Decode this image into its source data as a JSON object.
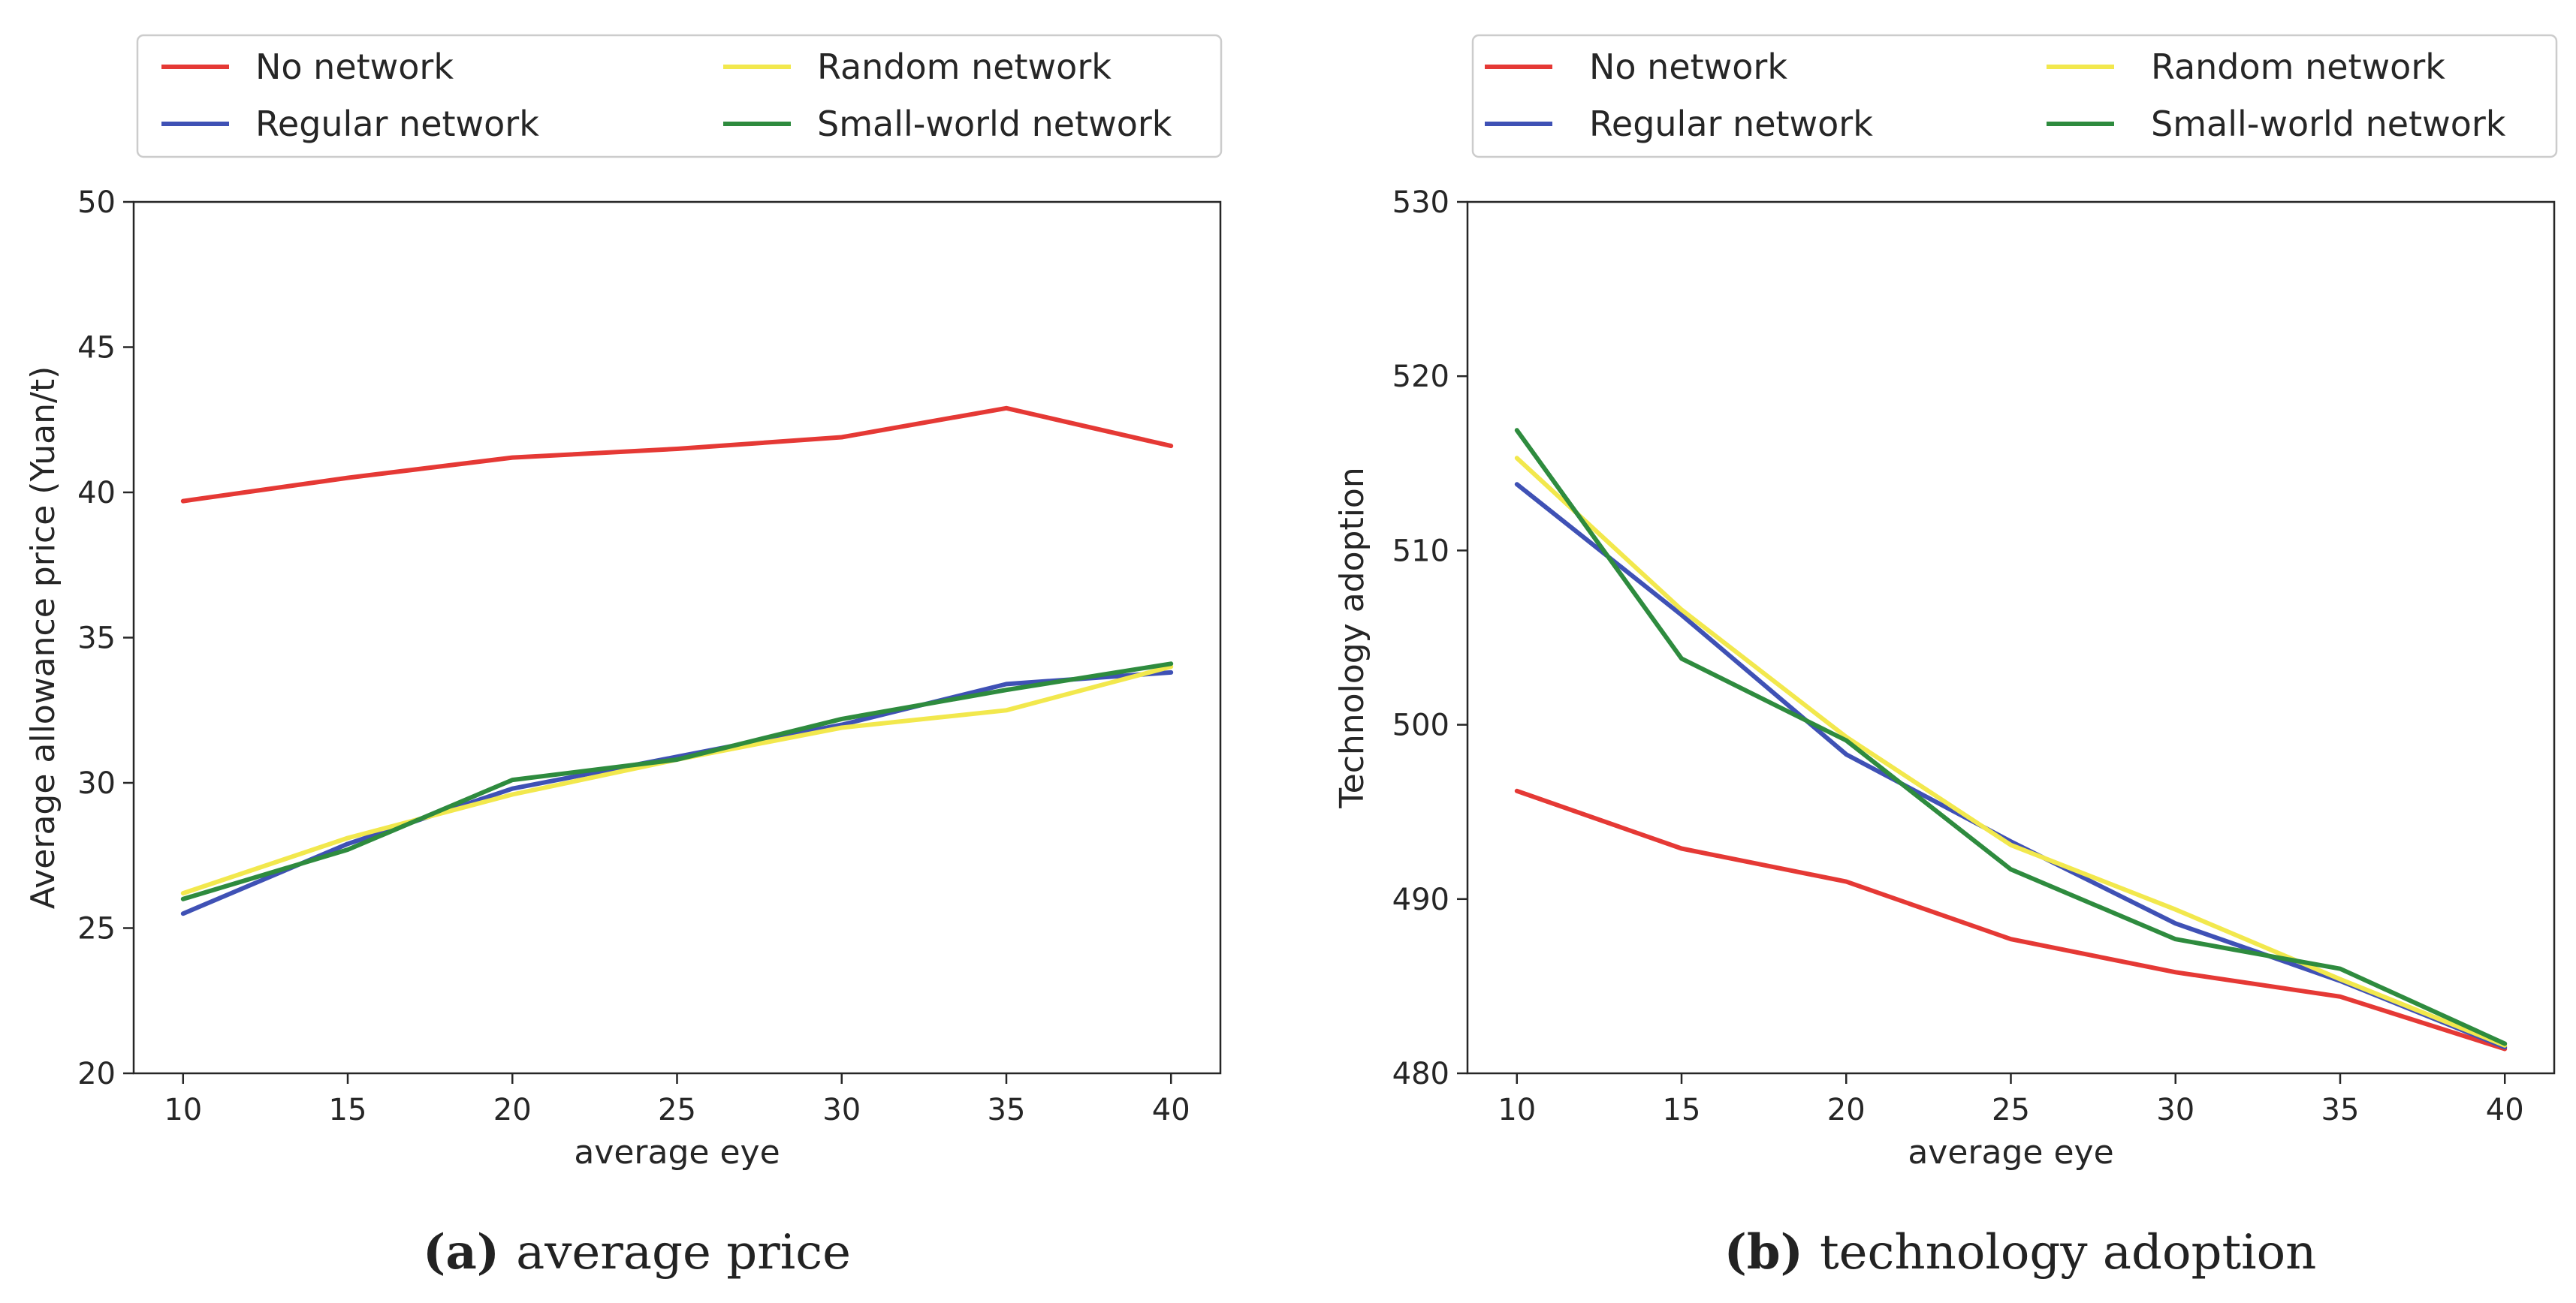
{
  "colors": {
    "no_network": "#e53935",
    "regular_network": "#3f51b5",
    "random_network": "#f2e84d",
    "small_world_network": "#2e8b3e"
  },
  "chart_data": [
    {
      "type": "line",
      "caption_letter": "(a)",
      "caption": "average price",
      "xlabel": "average eye",
      "ylabel": "Average allowance price (Yuan/t)",
      "x": [
        10,
        15,
        20,
        25,
        30,
        35,
        40
      ],
      "xlim": [
        8.5,
        41.5
      ],
      "ylim": [
        20,
        50
      ],
      "xticks": [
        10,
        15,
        20,
        25,
        30,
        35,
        40
      ],
      "yticks": [
        20,
        25,
        30,
        35,
        40,
        45,
        50
      ],
      "grid": false,
      "legend_placement": "top, above plot",
      "series": [
        {
          "name": "No network",
          "key": "no_network",
          "values": [
            39.7,
            40.5,
            41.2,
            41.5,
            41.9,
            42.9,
            41.6
          ]
        },
        {
          "name": "Regular network",
          "key": "regular_network",
          "values": [
            25.5,
            27.9,
            29.8,
            30.9,
            32.0,
            33.4,
            33.8
          ]
        },
        {
          "name": "Random network",
          "key": "random_network",
          "values": [
            26.2,
            28.1,
            29.6,
            30.8,
            31.9,
            32.5,
            34.0
          ]
        },
        {
          "name": "Small-world network",
          "key": "small_world_network",
          "values": [
            26.0,
            27.7,
            30.1,
            30.8,
            32.2,
            33.2,
            34.1
          ]
        }
      ]
    },
    {
      "type": "line",
      "caption_letter": "(b)",
      "caption": "technology adoption",
      "xlabel": "average eye",
      "ylabel": "Technology adoption",
      "x": [
        10,
        15,
        20,
        25,
        30,
        35,
        40
      ],
      "xlim": [
        8.5,
        41.5
      ],
      "ylim": [
        480,
        530
      ],
      "xticks": [
        10,
        15,
        20,
        25,
        30,
        35,
        40
      ],
      "yticks": [
        480,
        490,
        500,
        510,
        520,
        530
      ],
      "grid": false,
      "legend_placement": "top, above plot",
      "series": [
        {
          "name": "No network",
          "key": "no_network",
          "values": [
            496.2,
            492.9,
            491.0,
            487.7,
            485.8,
            484.4,
            481.4
          ]
        },
        {
          "name": "Regular network",
          "key": "regular_network",
          "values": [
            513.8,
            506.3,
            498.3,
            493.3,
            488.6,
            485.3,
            481.5
          ]
        },
        {
          "name": "Random network",
          "key": "random_network",
          "values": [
            515.3,
            506.6,
            499.3,
            493.1,
            489.4,
            485.4,
            481.6
          ]
        },
        {
          "name": "Small-world network",
          "key": "small_world_network",
          "values": [
            516.9,
            503.8,
            499.1,
            491.7,
            487.7,
            486.0,
            481.7
          ]
        }
      ]
    }
  ]
}
